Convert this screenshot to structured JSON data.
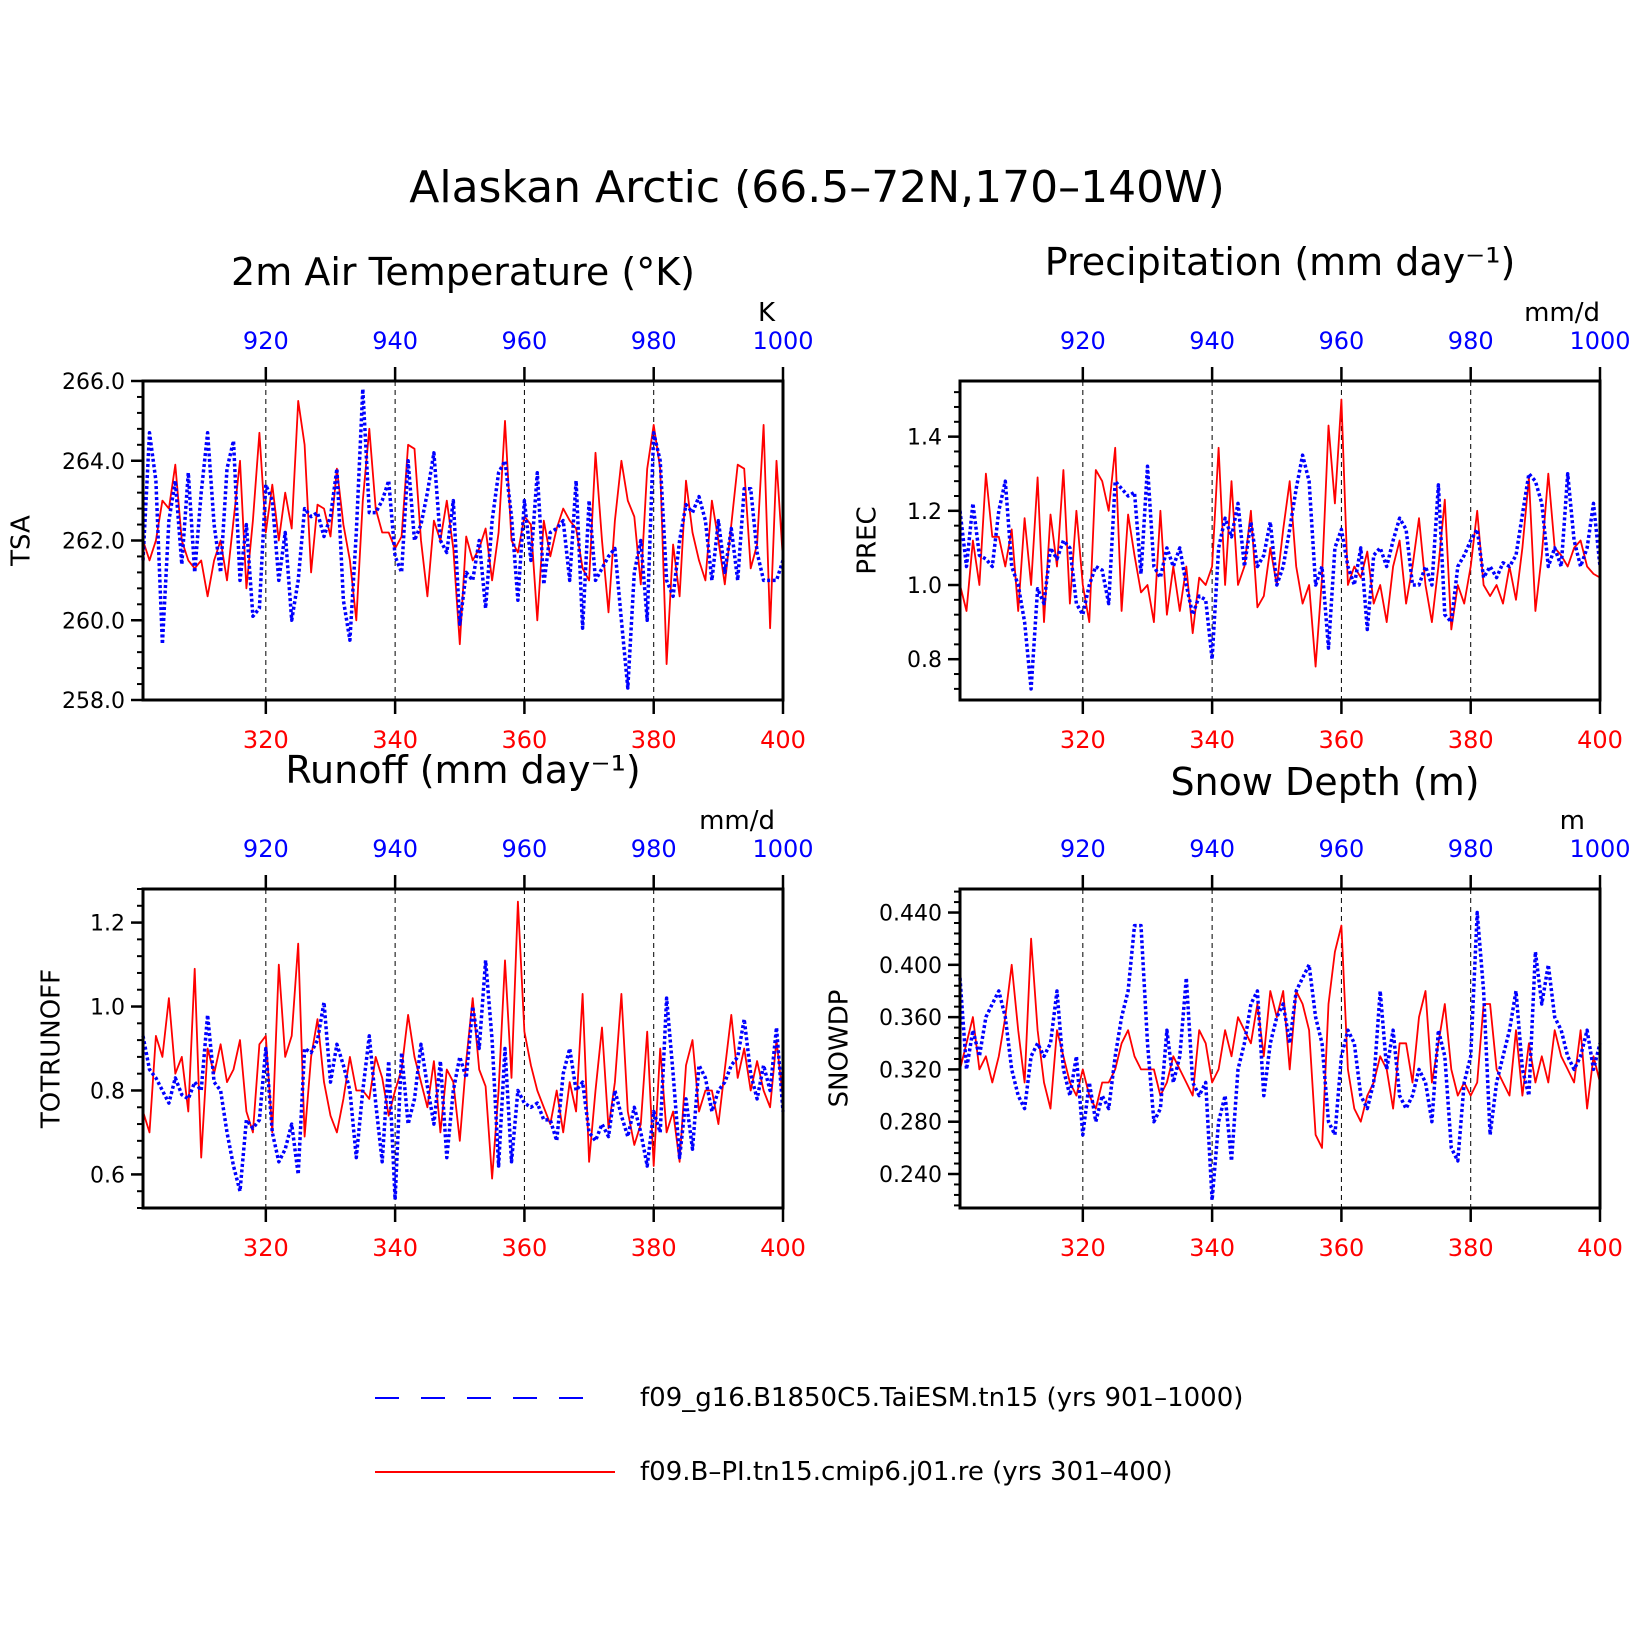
{
  "title": "Alaskan Arctic (66.5–72N,170–140W)",
  "legend": {
    "entries": [
      {
        "label": "f09_g16.B1850C5.TaiESM.tn15 (yrs 901–1000)",
        "color": "#0000ff",
        "style": "dashed"
      },
      {
        "label": "f09.B–PI.tn15.cmip6.j01.re (yrs 301–400)",
        "color": "#ff0000",
        "style": "solid"
      }
    ]
  },
  "colors": {
    "red_series": "#ff0000",
    "blue_series": "#0000ff",
    "axis": "#000000"
  },
  "chart_data": [
    {
      "type": "line",
      "title": "2m Air Temperature (°K)",
      "ylabel": "TSA",
      "units": "K",
      "ylim": [
        258.0,
        266.0
      ],
      "yticks": [
        "258.0",
        "260.0",
        "262.0",
        "264.0",
        "266.0"
      ],
      "ytick_values": [
        258,
        260,
        262,
        264,
        266
      ],
      "xlim_bottom": [
        301,
        400
      ],
      "xticks_bottom": [
        "320",
        "340",
        "360",
        "380",
        "400"
      ],
      "xlim_top": [
        901,
        1000
      ],
      "xticks_top": [
        "920",
        "940",
        "960",
        "980",
        "1000"
      ],
      "series": [
        {
          "axis": "bottom",
          "color": "#ff0000",
          "style": "solid",
          "start": 301,
          "values": [
            262.0,
            261.5,
            262.0,
            263.0,
            262.8,
            263.9,
            262.0,
            261.5,
            261.3,
            261.5,
            260.6,
            261.5,
            262.0,
            261.0,
            262.5,
            264.0,
            260.8,
            262.5,
            264.7,
            262.2,
            263.4,
            262.0,
            263.2,
            262.3,
            265.5,
            264.4,
            261.2,
            262.9,
            262.8,
            262.1,
            263.8,
            262.4,
            261.5,
            260.0,
            263.0,
            264.8,
            262.8,
            262.2,
            262.2,
            261.8,
            262.1,
            264.4,
            264.3,
            262.0,
            260.6,
            262.5,
            262.0,
            263.0,
            261.8,
            259.4,
            262.1,
            261.5,
            261.8,
            262.3,
            261.0,
            262.2,
            265.0,
            262.0,
            261.7,
            262.6,
            262.4,
            260.0,
            262.5,
            261.6,
            262.3,
            262.8,
            262.5,
            262.3,
            261.3,
            261.0,
            264.2,
            262.0,
            260.2,
            262.5,
            264.0,
            263.0,
            262.6,
            260.9,
            263.8,
            264.9,
            263.8,
            258.9,
            261.9,
            260.6,
            263.5,
            262.2,
            261.5,
            261.0,
            263.0,
            262.0,
            260.9,
            262.4,
            263.9,
            263.8,
            261.3,
            261.9,
            264.9,
            259.8,
            264.0,
            261.5
          ]
        },
        {
          "axis": "top",
          "color": "#0000ff",
          "style": "dashed",
          "start": 901,
          "values": [
            261.5,
            264.7,
            263.5,
            259.4,
            262.5,
            263.5,
            261.4,
            263.7,
            261.2,
            263.2,
            264.7,
            262.4,
            261.2,
            263.8,
            264.5,
            261.0,
            262.4,
            260.1,
            260.3,
            263.4,
            263.0,
            261.0,
            262.2,
            260.0,
            261.0,
            262.8,
            262.6,
            262.7,
            262.1,
            262.6,
            263.8,
            260.5,
            259.5,
            262.2,
            265.8,
            262.7,
            262.7,
            263.0,
            263.5,
            261.6,
            261.2,
            264.0,
            262.0,
            262.4,
            263.2,
            264.2,
            262.0,
            261.7,
            263.0,
            259.9,
            261.2,
            261.0,
            262.0,
            260.3,
            262.5,
            263.7,
            264.0,
            262.6,
            260.5,
            263.0,
            261.5,
            263.7,
            260.9,
            262.2,
            262.3,
            262.5,
            261.0,
            263.5,
            259.8,
            263.0,
            261.0,
            261.3,
            261.6,
            261.8,
            260.0,
            258.3,
            261.2,
            262.0,
            260.0,
            264.7,
            264.0,
            261.0,
            260.6,
            262.0,
            262.9,
            262.7,
            263.1,
            262.5,
            261.0,
            262.5,
            261.2,
            262.3,
            261.0,
            263.3,
            263.3,
            261.7,
            261.0,
            261.0,
            261.0,
            261.5
          ]
        }
      ]
    },
    {
      "type": "line",
      "title": "Precipitation (mm day⁻¹)",
      "ylabel": "PREC",
      "units": "mm/d",
      "ylim": [
        0.69,
        1.55
      ],
      "yticks": [
        "0.8",
        "1.0",
        "1.2",
        "1.4"
      ],
      "ytick_values": [
        0.8,
        1.0,
        1.2,
        1.4
      ],
      "xlim_bottom": [
        301,
        400
      ],
      "xticks_bottom": [
        "320",
        "340",
        "360",
        "380",
        "400"
      ],
      "xlim_top": [
        901,
        1000
      ],
      "xticks_top": [
        "920",
        "940",
        "960",
        "980",
        "1000"
      ],
      "series": [
        {
          "axis": "bottom",
          "color": "#ff0000",
          "style": "solid",
          "start": 301,
          "values": [
            1.0,
            0.93,
            1.12,
            1.0,
            1.3,
            1.13,
            1.13,
            1.05,
            1.15,
            0.93,
            1.18,
            1.0,
            1.29,
            0.9,
            1.19,
            1.05,
            1.31,
            0.95,
            1.2,
            1.0,
            0.9,
            1.31,
            1.28,
            1.2,
            1.37,
            0.93,
            1.19,
            1.08,
            0.98,
            1.0,
            0.9,
            1.2,
            0.92,
            1.05,
            0.93,
            1.05,
            0.87,
            1.02,
            1.0,
            1.05,
            1.37,
            1.0,
            1.28,
            1.0,
            1.05,
            1.2,
            0.94,
            0.97,
            1.1,
            1.0,
            1.15,
            1.28,
            1.05,
            0.95,
            1.0,
            0.78,
            1.02,
            1.43,
            1.22,
            1.5,
            1.0,
            1.05,
            1.02,
            1.09,
            0.95,
            1.0,
            0.9,
            1.05,
            1.12,
            0.95,
            1.05,
            1.18,
            1.0,
            0.9,
            1.05,
            1.23,
            0.88,
            1.0,
            0.95,
            1.05,
            1.2,
            1.0,
            0.97,
            1.0,
            0.95,
            1.05,
            0.96,
            1.1,
            1.29,
            0.93,
            1.08,
            1.3,
            1.1,
            1.08,
            1.05,
            1.1,
            1.12,
            1.05,
            1.03,
            1.02
          ]
        },
        {
          "axis": "top",
          "color": "#0000ff",
          "style": "dashed",
          "start": 901,
          "values": [
            1.2,
            1.05,
            1.22,
            1.08,
            1.07,
            1.05,
            1.2,
            1.28,
            1.05,
            1.0,
            0.9,
            0.72,
            0.99,
            0.95,
            1.1,
            1.07,
            1.12,
            1.1,
            0.95,
            0.92,
            1.0,
            1.05,
            1.04,
            0.95,
            1.28,
            1.26,
            1.24,
            1.25,
            1.03,
            1.32,
            1.05,
            1.02,
            1.1,
            1.05,
            1.1,
            1.0,
            0.92,
            0.97,
            0.96,
            0.8,
            1.1,
            1.18,
            1.13,
            1.22,
            1.05,
            1.17,
            1.05,
            1.08,
            1.17,
            1.0,
            1.05,
            1.15,
            1.26,
            1.35,
            1.28,
            1.0,
            1.05,
            0.83,
            1.1,
            1.15,
            1.05,
            1.0,
            1.1,
            0.88,
            1.08,
            1.1,
            1.05,
            1.12,
            1.18,
            1.15,
            1.0,
            1.0,
            1.05,
            1.0,
            1.27,
            0.92,
            0.9,
            1.05,
            1.08,
            1.12,
            1.15,
            1.02,
            1.05,
            1.02,
            1.06,
            1.05,
            1.08,
            1.19,
            1.3,
            1.28,
            1.22,
            1.05,
            1.1,
            1.05,
            1.3,
            1.12,
            1.05,
            1.1,
            1.22,
            1.05
          ]
        }
      ]
    },
    {
      "type": "line",
      "title": "Runoff (mm day⁻¹)",
      "ylabel": "TOTRUNOFF",
      "units": "mm/d",
      "ylim": [
        0.52,
        1.28
      ],
      "yticks": [
        "0.6",
        "0.8",
        "1.0",
        "1.2"
      ],
      "ytick_values": [
        0.6,
        0.8,
        1.0,
        1.2
      ],
      "xlim_bottom": [
        301,
        400
      ],
      "xticks_bottom": [
        "320",
        "340",
        "360",
        "380",
        "400"
      ],
      "xlim_top": [
        901,
        1000
      ],
      "xticks_top": [
        "920",
        "940",
        "960",
        "980",
        "1000"
      ],
      "series": [
        {
          "axis": "bottom",
          "color": "#ff0000",
          "style": "solid",
          "start": 301,
          "values": [
            0.75,
            0.7,
            0.93,
            0.88,
            1.02,
            0.84,
            0.88,
            0.75,
            1.09,
            0.64,
            0.9,
            0.84,
            0.91,
            0.82,
            0.85,
            0.92,
            0.75,
            0.7,
            0.91,
            0.93,
            0.7,
            1.1,
            0.88,
            0.93,
            1.15,
            0.69,
            0.88,
            0.97,
            0.82,
            0.74,
            0.7,
            0.78,
            0.88,
            0.8,
            0.8,
            0.78,
            0.88,
            0.83,
            0.74,
            0.8,
            0.85,
            0.98,
            0.88,
            0.82,
            0.76,
            0.87,
            0.7,
            0.85,
            0.82,
            0.68,
            0.87,
            1.02,
            0.85,
            0.81,
            0.59,
            0.8,
            1.11,
            0.83,
            1.25,
            0.94,
            0.86,
            0.8,
            0.76,
            0.72,
            0.8,
            0.7,
            0.82,
            0.75,
            1.03,
            0.63,
            0.8,
            0.95,
            0.71,
            0.82,
            1.03,
            0.75,
            0.67,
            0.72,
            0.94,
            0.62,
            0.9,
            0.7,
            0.75,
            0.63,
            0.86,
            0.92,
            0.75,
            0.8,
            0.8,
            0.72,
            0.85,
            0.98,
            0.83,
            0.9,
            0.8,
            0.87,
            0.8,
            0.76,
            0.92,
            0.78
          ]
        },
        {
          "axis": "top",
          "color": "#0000ff",
          "style": "dashed",
          "start": 901,
          "values": [
            0.93,
            0.85,
            0.83,
            0.8,
            0.77,
            0.83,
            0.79,
            0.78,
            0.82,
            0.8,
            0.98,
            0.82,
            0.8,
            0.7,
            0.62,
            0.56,
            0.73,
            0.71,
            0.73,
            0.9,
            0.7,
            0.63,
            0.66,
            0.72,
            0.6,
            0.9,
            0.89,
            0.92,
            1.01,
            0.82,
            0.91,
            0.86,
            0.8,
            0.64,
            0.8,
            0.93,
            0.77,
            0.63,
            0.87,
            0.54,
            0.89,
            0.72,
            0.78,
            0.91,
            0.81,
            0.72,
            0.87,
            0.64,
            0.8,
            0.88,
            0.83,
            1.0,
            0.9,
            1.11,
            0.92,
            0.62,
            0.9,
            0.63,
            0.8,
            0.77,
            0.76,
            0.77,
            0.73,
            0.73,
            0.68,
            0.84,
            0.9,
            0.8,
            0.82,
            0.7,
            0.68,
            0.72,
            0.69,
            0.8,
            0.74,
            0.69,
            0.76,
            0.7,
            0.62,
            0.75,
            0.7,
            1.02,
            0.84,
            0.64,
            0.78,
            0.66,
            0.86,
            0.83,
            0.75,
            0.8,
            0.82,
            0.86,
            0.88,
            0.97,
            0.84,
            0.78,
            0.86,
            0.8,
            0.95,
            0.75
          ]
        }
      ]
    },
    {
      "type": "line",
      "title": "Snow Depth (m)",
      "ylabel": "SNOWDP",
      "units": "m",
      "ylim": [
        0.214,
        0.458
      ],
      "yticks": [
        "0.240",
        "0.280",
        "0.320",
        "0.360",
        "0.400",
        "0.440"
      ],
      "ytick_values": [
        0.24,
        0.28,
        0.32,
        0.36,
        0.4,
        0.44
      ],
      "xlim_bottom": [
        301,
        400
      ],
      "xticks_bottom": [
        "320",
        "340",
        "360",
        "380",
        "400"
      ],
      "xlim_top": [
        901,
        1000
      ],
      "xticks_top": [
        "920",
        "940",
        "960",
        "980",
        "1000"
      ],
      "series": [
        {
          "axis": "bottom",
          "color": "#ff0000",
          "style": "solid",
          "start": 301,
          "values": [
            0.32,
            0.34,
            0.36,
            0.32,
            0.33,
            0.31,
            0.33,
            0.36,
            0.4,
            0.35,
            0.31,
            0.42,
            0.35,
            0.31,
            0.29,
            0.35,
            0.33,
            0.31,
            0.3,
            0.32,
            0.3,
            0.29,
            0.31,
            0.31,
            0.32,
            0.34,
            0.35,
            0.33,
            0.32,
            0.32,
            0.32,
            0.3,
            0.31,
            0.33,
            0.32,
            0.31,
            0.3,
            0.35,
            0.34,
            0.31,
            0.32,
            0.35,
            0.33,
            0.36,
            0.35,
            0.34,
            0.37,
            0.33,
            0.38,
            0.36,
            0.38,
            0.32,
            0.38,
            0.37,
            0.35,
            0.27,
            0.26,
            0.37,
            0.41,
            0.43,
            0.32,
            0.29,
            0.28,
            0.3,
            0.31,
            0.33,
            0.32,
            0.29,
            0.34,
            0.34,
            0.31,
            0.36,
            0.38,
            0.31,
            0.34,
            0.37,
            0.32,
            0.3,
            0.31,
            0.3,
            0.31,
            0.37,
            0.37,
            0.32,
            0.31,
            0.3,
            0.35,
            0.3,
            0.34,
            0.31,
            0.33,
            0.31,
            0.35,
            0.33,
            0.32,
            0.31,
            0.35,
            0.29,
            0.33,
            0.31
          ]
        },
        {
          "axis": "top",
          "color": "#0000ff",
          "style": "dashed",
          "start": 901,
          "values": [
            0.39,
            0.32,
            0.35,
            0.33,
            0.36,
            0.37,
            0.38,
            0.36,
            0.32,
            0.3,
            0.29,
            0.33,
            0.34,
            0.33,
            0.34,
            0.38,
            0.32,
            0.3,
            0.33,
            0.27,
            0.31,
            0.28,
            0.3,
            0.29,
            0.33,
            0.36,
            0.38,
            0.43,
            0.43,
            0.34,
            0.28,
            0.29,
            0.35,
            0.31,
            0.33,
            0.39,
            0.31,
            0.3,
            0.31,
            0.22,
            0.28,
            0.3,
            0.25,
            0.32,
            0.34,
            0.37,
            0.38,
            0.3,
            0.34,
            0.36,
            0.37,
            0.34,
            0.38,
            0.39,
            0.4,
            0.36,
            0.34,
            0.28,
            0.27,
            0.33,
            0.35,
            0.34,
            0.3,
            0.29,
            0.31,
            0.38,
            0.32,
            0.35,
            0.3,
            0.29,
            0.3,
            0.32,
            0.31,
            0.28,
            0.35,
            0.33,
            0.26,
            0.25,
            0.31,
            0.33,
            0.44,
            0.38,
            0.27,
            0.31,
            0.33,
            0.35,
            0.38,
            0.32,
            0.3,
            0.41,
            0.37,
            0.4,
            0.36,
            0.35,
            0.33,
            0.32,
            0.33,
            0.35,
            0.32,
            0.34
          ]
        }
      ]
    }
  ]
}
